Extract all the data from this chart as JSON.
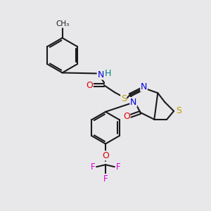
{
  "background_color": "#e8e8eb",
  "bond_color": "#1a1a1a",
  "atom_colors": {
    "N": "#0000e0",
    "O": "#e00000",
    "S": "#b8a000",
    "F": "#dd00dd",
    "H": "#008080",
    "C": "#1a1a1a"
  },
  "figsize": [
    3.0,
    3.0
  ],
  "dpi": 100
}
